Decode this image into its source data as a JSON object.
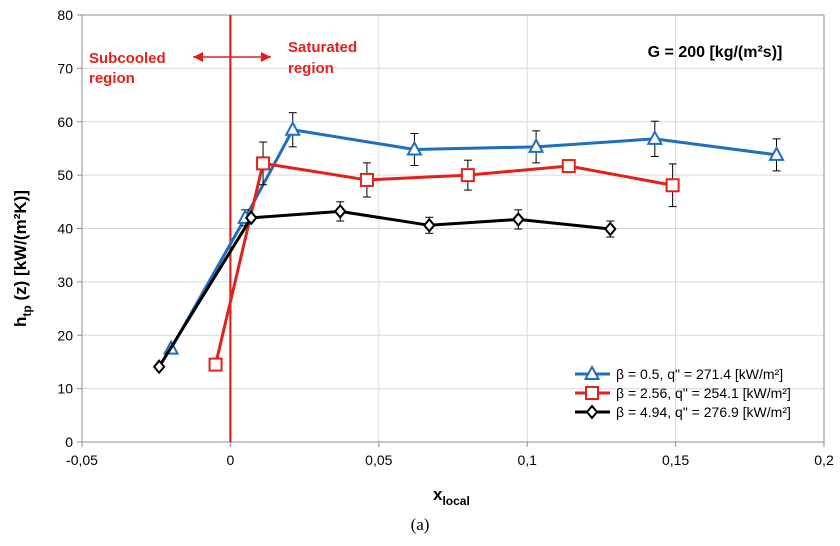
{
  "chart_data": {
    "type": "line",
    "title": "",
    "xlabel": "x",
    "xlabel_sub": "local",
    "ylabel": "h",
    "ylabel_sub": "tp",
    "ylabel_rest": " (z) [kW/(m²K)]",
    "xlim": [
      -0.05,
      0.2
    ],
    "ylim": [
      0,
      80
    ],
    "xticks": [
      -0.05,
      0,
      0.05,
      0.1,
      0.15,
      0.2
    ],
    "xtick_labels": [
      "-0,05",
      "0",
      "0,05",
      "0,1",
      "0,15",
      "0,2"
    ],
    "yticks": [
      0,
      10,
      20,
      30,
      40,
      50,
      60,
      70,
      80
    ],
    "ytick_labels": [
      "0",
      "10",
      "20",
      "30",
      "40",
      "50",
      "60",
      "70",
      "80"
    ],
    "grid": true,
    "legend_position": "bottom-right",
    "series": [
      {
        "name": "β = 0.5, q\" = 271.4 [kW/m²]",
        "color": "#1f6fbf",
        "marker": "triangle",
        "x": [
          -0.02,
          0.005,
          0.021,
          0.062,
          0.103,
          0.143,
          0.184
        ],
        "y": [
          17.5,
          42.0,
          58.5,
          54.8,
          55.3,
          56.8,
          53.8
        ],
        "err": [
          null,
          1.5,
          3.2,
          3.0,
          3.0,
          3.3,
          3.0
        ]
      },
      {
        "name": "β = 2.56, q\" = 254.1 [kW/m²]",
        "color": "#e3211c",
        "marker": "square",
        "x": [
          -0.005,
          0.011,
          0.046,
          0.08,
          0.114,
          0.149
        ],
        "y": [
          14.5,
          52.2,
          49.1,
          50.0,
          51.7,
          48.1
        ],
        "err": [
          null,
          4.0,
          3.2,
          2.8,
          null,
          4.0
        ]
      },
      {
        "name": "β = 4.94, q\" = 276.9 [kW/m²]",
        "color": "#000000",
        "marker": "diamond",
        "x": [
          -0.024,
          0.007,
          0.037,
          0.067,
          0.097,
          0.128
        ],
        "y": [
          14.1,
          42.0,
          43.2,
          40.6,
          41.7,
          39.9
        ],
        "err": [
          null,
          null,
          1.8,
          1.5,
          1.8,
          1.5
        ]
      }
    ],
    "vline_x": 0,
    "annotations": {
      "subcooled": [
        "Subcooled",
        "region"
      ],
      "saturated": [
        "Saturated",
        "region"
      ],
      "mass_flux": "G = 200 [kg/(m²s)]"
    }
  },
  "caption": "(a)"
}
